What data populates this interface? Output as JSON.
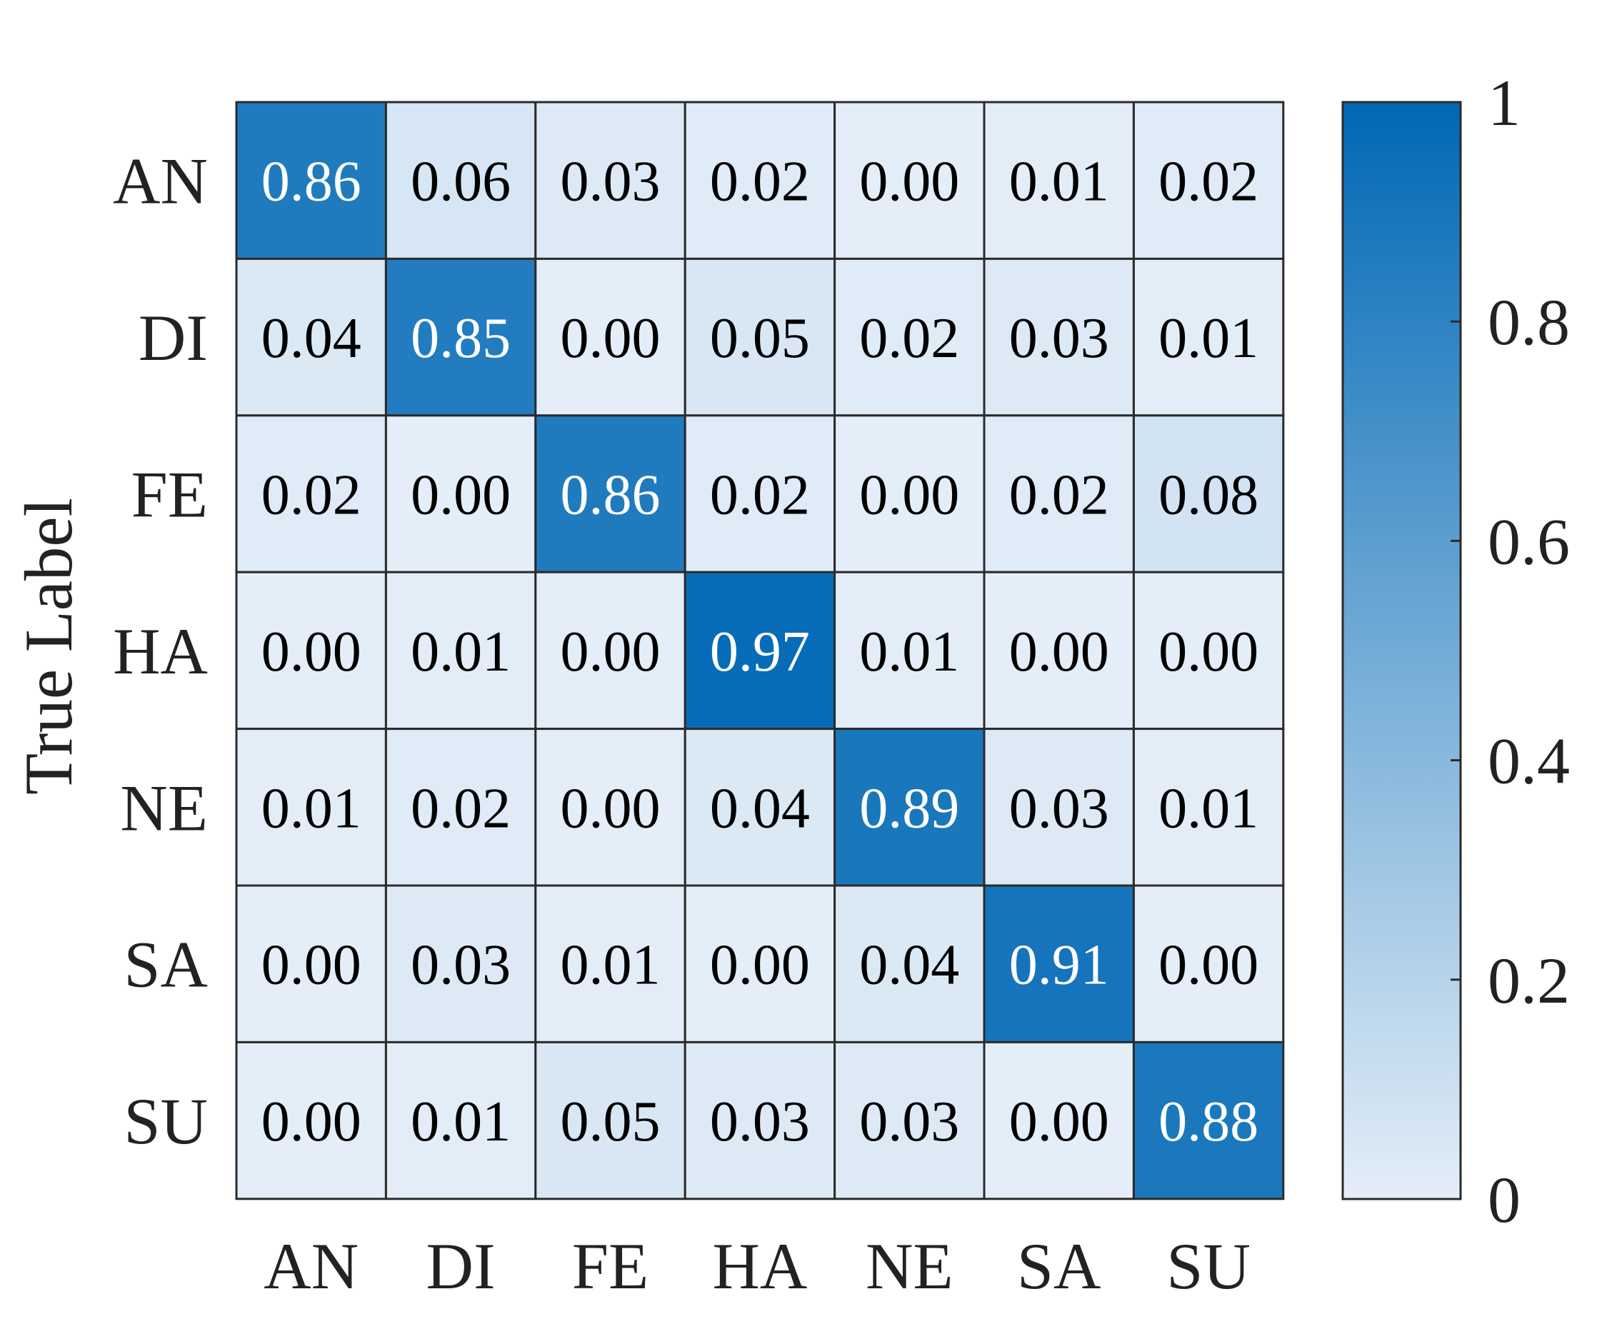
{
  "chart_data": {
    "type": "heatmap",
    "title": "",
    "xlabel": "",
    "ylabel": "True Label",
    "x_categories": [
      "AN",
      "DI",
      "FE",
      "HA",
      "NE",
      "SA",
      "SU"
    ],
    "y_categories": [
      "AN",
      "DI",
      "FE",
      "HA",
      "NE",
      "SA",
      "SU"
    ],
    "values": [
      [
        0.86,
        0.06,
        0.03,
        0.02,
        0.0,
        0.01,
        0.02
      ],
      [
        0.04,
        0.85,
        0.0,
        0.05,
        0.02,
        0.03,
        0.01
      ],
      [
        0.02,
        0.0,
        0.86,
        0.02,
        0.0,
        0.02,
        0.08
      ],
      [
        0.0,
        0.01,
        0.0,
        0.97,
        0.01,
        0.0,
        0.0
      ],
      [
        0.01,
        0.02,
        0.0,
        0.04,
        0.89,
        0.03,
        0.01
      ],
      [
        0.0,
        0.03,
        0.01,
        0.0,
        0.04,
        0.91,
        0.0
      ],
      [
        0.0,
        0.01,
        0.05,
        0.03,
        0.03,
        0.0,
        0.88
      ]
    ],
    "value_labels": [
      [
        "0.86",
        "0.06",
        "0.03",
        "0.02",
        "0.00",
        "0.01",
        "0.02"
      ],
      [
        "0.04",
        "0.85",
        "0.00",
        "0.05",
        "0.02",
        "0.03",
        "0.01"
      ],
      [
        "0.02",
        "0.00",
        "0.86",
        "0.02",
        "0.00",
        "0.02",
        "0.08"
      ],
      [
        "0.00",
        "0.01",
        "0.00",
        "0.97",
        "0.01",
        "0.00",
        "0.00"
      ],
      [
        "0.01",
        "0.02",
        "0.00",
        "0.04",
        "0.89",
        "0.03",
        "0.01"
      ],
      [
        "0.00",
        "0.03",
        "0.01",
        "0.00",
        "0.04",
        "0.91",
        "0.00"
      ],
      [
        "0.00",
        "0.01",
        "0.05",
        "0.03",
        "0.03",
        "0.00",
        "0.88"
      ]
    ],
    "colorbar": {
      "range": [
        0,
        1
      ],
      "ticks": [
        0,
        0.2,
        0.4,
        0.6,
        0.8,
        1
      ],
      "tick_labels": [
        "0",
        "0.2",
        "0.4",
        "0.6",
        "0.8",
        "1"
      ],
      "color_low": "#e4eef8",
      "color_high": "#0068b5"
    },
    "grid": true,
    "colors": {
      "cell_border": "#2b2b2b",
      "text_dark": "#000000",
      "text_light": "#ffffff"
    }
  }
}
